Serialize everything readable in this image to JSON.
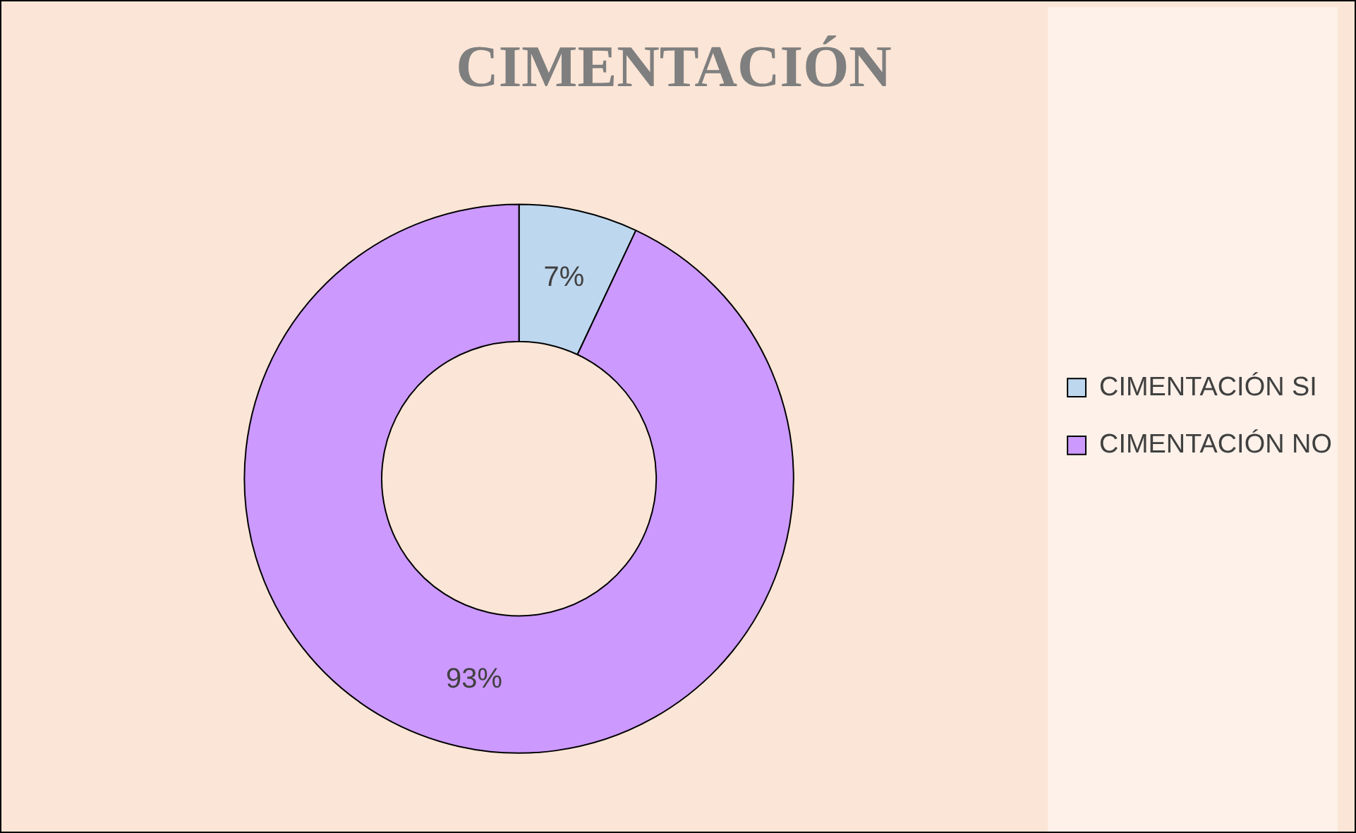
{
  "chart_data": {
    "type": "donut",
    "title": "CIMENTACIÓN",
    "categories": [
      "CIMENTACIÓN SI",
      "CIMENTACIÓN NO"
    ],
    "values": [
      7,
      93
    ],
    "colors": [
      "#bdd7ee",
      "#cc99ff"
    ],
    "value_labels": [
      "7%",
      "93%"
    ],
    "legend": "right"
  }
}
